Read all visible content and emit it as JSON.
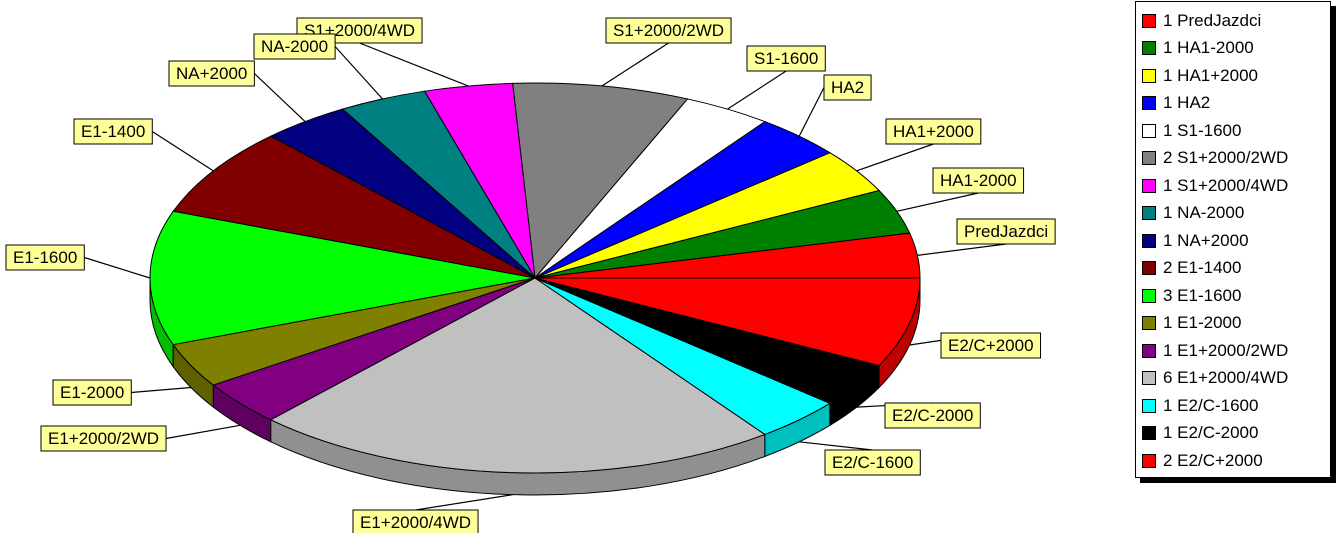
{
  "chart_data": {
    "type": "pie",
    "title": "",
    "style": "3d-exploded",
    "legend_position": "right",
    "slices": [
      {
        "label": "PredJazdci",
        "legend": "1 PredJazdci",
        "value": 1,
        "color": "#ff0000"
      },
      {
        "label": "HA1-2000",
        "legend": "1 HA1-2000",
        "value": 1,
        "color": "#008000"
      },
      {
        "label": "HA1+2000",
        "legend": "1 HA1+2000",
        "value": 1,
        "color": "#ffff00"
      },
      {
        "label": "HA2",
        "legend": "1 HA2",
        "value": 1,
        "color": "#0000ff"
      },
      {
        "label": "S1-1600",
        "legend": "1 S1-1600",
        "value": 1,
        "color": "#ffffff"
      },
      {
        "label": "S1+2000/2WD",
        "legend": "2 S1+2000/2WD",
        "value": 2,
        "color": "#808080"
      },
      {
        "label": "S1+2000/4WD",
        "legend": "1 S1+2000/4WD",
        "value": 1,
        "color": "#ff00ff"
      },
      {
        "label": "NA-2000",
        "legend": "1 NA-2000",
        "value": 1,
        "color": "#008080"
      },
      {
        "label": "NA+2000",
        "legend": "1 NA+2000",
        "value": 1,
        "color": "#000080"
      },
      {
        "label": "E1-1400",
        "legend": "2 E1-1400",
        "value": 2,
        "color": "#800000"
      },
      {
        "label": "E1-1600",
        "legend": "3 E1-1600",
        "value": 3,
        "color": "#00ff00"
      },
      {
        "label": "E1-2000",
        "legend": "1 E1-2000",
        "value": 1,
        "color": "#808000"
      },
      {
        "label": "E1+2000/2WD",
        "legend": "1 E1+2000/2WD",
        "value": 1,
        "color": "#800080"
      },
      {
        "label": "E1+2000/4WD",
        "legend": "6 E1+2000/4WD",
        "value": 6,
        "color": "#c0c0c0"
      },
      {
        "label": "E2/C-1600",
        "legend": "1 E2/C-1600",
        "value": 1,
        "color": "#00ffff"
      },
      {
        "label": "E2/C-2000",
        "legend": "1 E2/C-2000",
        "value": 1,
        "color": "#000000"
      },
      {
        "label": "E2/C+2000",
        "legend": "2 E2/C+2000",
        "value": 2,
        "color": "#ff0000"
      }
    ]
  }
}
